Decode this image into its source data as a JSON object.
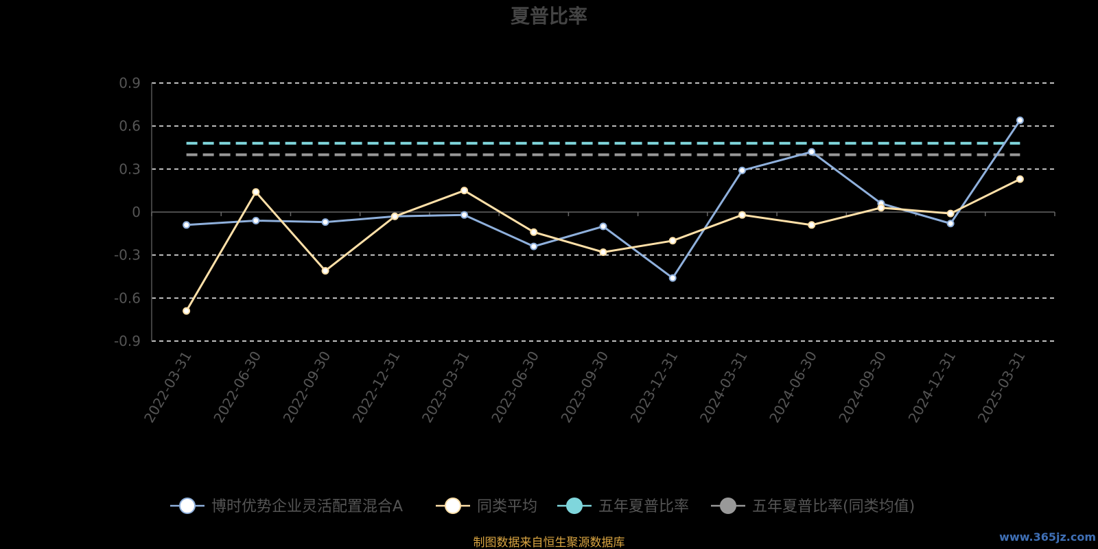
{
  "chart_data": {
    "type": "line",
    "title": "夏普比率",
    "categories": [
      "2022-03-31",
      "2022-06-30",
      "2022-09-30",
      "2022-12-31",
      "2023-03-31",
      "2023-06-30",
      "2023-09-30",
      "2023-12-31",
      "2024-03-31",
      "2024-06-30",
      "2024-09-30",
      "2024-12-31",
      "2025-03-31"
    ],
    "yticks": [
      "0.9",
      "0.6",
      "0.3",
      "0",
      "-0.3",
      "-0.6",
      "-0.9"
    ],
    "ylim": [
      -0.9,
      0.9
    ],
    "grid": true,
    "legend_position": "bottom",
    "series": [
      {
        "name": "博时优势企业灵活配置混合A",
        "color": "#8fb0dc",
        "marker": "circle",
        "values": [
          -0.09,
          -0.06,
          -0.07,
          -0.03,
          -0.02,
          -0.24,
          -0.1,
          -0.46,
          0.29,
          0.42,
          0.06,
          -0.08,
          0.64
        ]
      },
      {
        "name": "同类平均",
        "color": "#ffe0a8",
        "marker": "circle",
        "values": [
          -0.69,
          0.14,
          -0.41,
          -0.03,
          0.15,
          -0.14,
          -0.28,
          -0.2,
          -0.02,
          -0.09,
          0.03,
          -0.01,
          0.23
        ]
      },
      {
        "name": "五年夏普比率",
        "color": "#7fd6dc",
        "style": "dashed",
        "value": 0.48
      },
      {
        "name": "五年夏普比率(同类均值)",
        "color": "#999999",
        "style": "dashed",
        "value": 0.4
      }
    ]
  },
  "footer": "制图数据来自恒生聚源数据库",
  "watermark": "www.365jz.com"
}
